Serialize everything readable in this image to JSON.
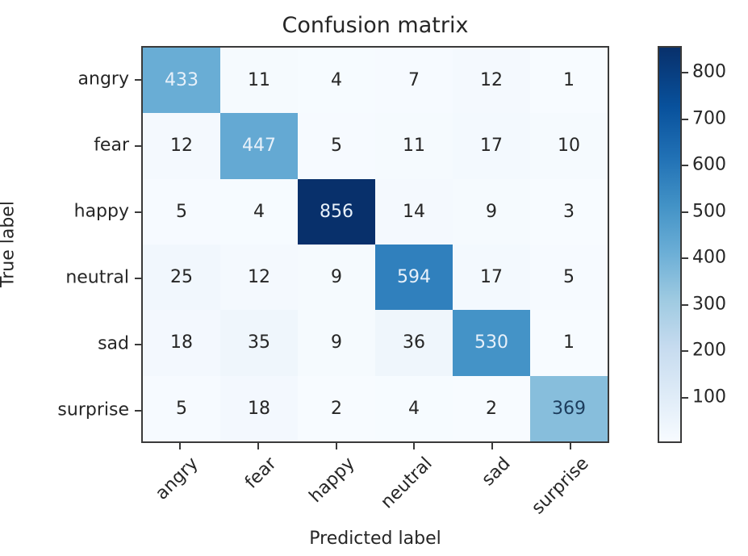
{
  "chart_data": {
    "type": "heatmap",
    "title": "Confusion matrix",
    "xlabel": "Predicted label",
    "ylabel": "True label",
    "x_categories": [
      "angry",
      "fear",
      "happy",
      "neutral",
      "sad",
      "surprise"
    ],
    "y_categories": [
      "angry",
      "fear",
      "happy",
      "neutral",
      "sad",
      "surprise"
    ],
    "matrix": [
      [
        433,
        11,
        4,
        7,
        12,
        1
      ],
      [
        12,
        447,
        5,
        11,
        17,
        10
      ],
      [
        5,
        4,
        856,
        14,
        9,
        3
      ],
      [
        25,
        12,
        9,
        594,
        17,
        5
      ],
      [
        18,
        35,
        9,
        36,
        530,
        1
      ],
      [
        5,
        18,
        2,
        4,
        2,
        369
      ]
    ],
    "colormap": "Blues",
    "colorbar": {
      "ticks": [
        100,
        200,
        300,
        400,
        500,
        600,
        700,
        800
      ],
      "range": [
        1,
        856
      ]
    },
    "grid": false,
    "legend": "colorbar-right"
  },
  "labels": {
    "title": "Confusion matrix",
    "xlabel": "Predicted label",
    "ylabel": "True label"
  }
}
